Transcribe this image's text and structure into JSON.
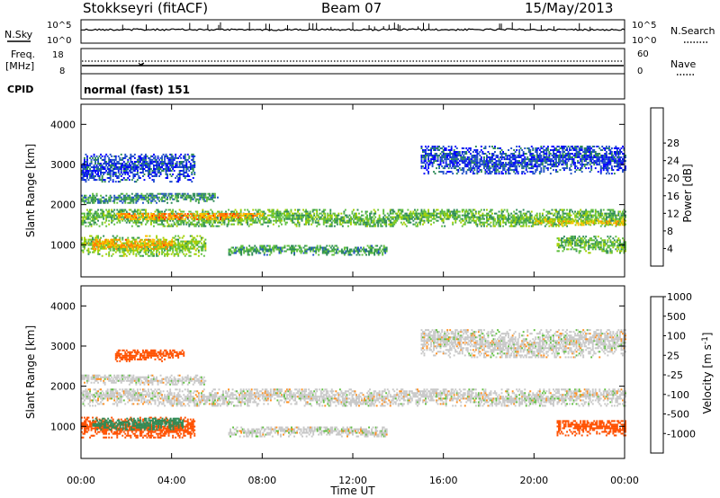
{
  "header": {
    "station": "Stokkseyri (fitACF)",
    "beam": "Beam 07",
    "date": "15/May/2013"
  },
  "strips": {
    "nsky_label": "N.Sky",
    "nsearch_label": "N.Search",
    "freq_label_1": "Freq.",
    "freq_label_2": "[MHz]",
    "nave_label": "Nave",
    "cpid_label": "CPID",
    "cpid_text": "normal (fast) 151",
    "noise_ticks_left": [
      "10^5",
      "10^0"
    ],
    "noise_ticks_right": [
      "10^5",
      "10^0"
    ],
    "freq_ticks_left": [
      "18",
      "8"
    ],
    "nave_ticks_right": [
      "60",
      "0"
    ]
  },
  "colors": {
    "power": [
      "#0000ff",
      "#2050c8",
      "#2e8b57",
      "#5fbf3f",
      "#a0d000",
      "#ffc000",
      "#ff8000",
      "#ff3000",
      "#ff0000"
    ],
    "velocity": [
      "#ff0000",
      "#ff5000",
      "#ff9020",
      "#c8c8c8",
      "#60c040",
      "#2e8b57",
      "#2050c8",
      "#0000ff"
    ]
  },
  "chart_data": [
    {
      "type": "heatmap",
      "panel": "power",
      "ylabel": "Slant Range [km]",
      "ylim": [
        200,
        4500
      ],
      "yticks": [
        1000,
        2000,
        3000,
        4000
      ],
      "colorbar_label": "Power [dB]",
      "colorbar_ticks": [
        "4",
        "8",
        "12",
        "16",
        "20",
        "24",
        "28"
      ],
      "colorbar_range": [
        0,
        32
      ],
      "bands": [
        {
          "t0": 0.0,
          "t1": 24.0,
          "r_center": 1650,
          "r_width": 420,
          "value": 12
        },
        {
          "t0": 1.5,
          "t1": 8.0,
          "r_center": 1700,
          "r_width": 180,
          "value": 22
        },
        {
          "t0": 0.0,
          "t1": 5.5,
          "r_center": 950,
          "r_width": 500,
          "value": 14
        },
        {
          "t0": 0.5,
          "t1": 4.0,
          "r_center": 1000,
          "r_width": 250,
          "value": 21
        },
        {
          "t0": 0.0,
          "t1": 6.0,
          "r_center": 2150,
          "r_width": 260,
          "value": 9
        },
        {
          "t0": 0.0,
          "t1": 5.0,
          "r_center": 2900,
          "r_width": 700,
          "value": 5
        },
        {
          "t0": 6.5,
          "t1": 13.5,
          "r_center": 850,
          "r_width": 250,
          "value": 10
        },
        {
          "t0": 15.0,
          "t1": 24.0,
          "r_center": 3100,
          "r_width": 700,
          "value": 5
        },
        {
          "t0": 21.0,
          "t1": 24.0,
          "r_center": 1000,
          "r_width": 450,
          "value": 12
        },
        {
          "t0": 20.0,
          "t1": 24.0,
          "r_center": 1550,
          "r_width": 160,
          "value": 18
        }
      ]
    },
    {
      "type": "heatmap",
      "panel": "velocity",
      "xlabel": "Time UT",
      "ylabel": "Slant Range [km]",
      "ylim": [
        200,
        4500
      ],
      "yticks": [
        1000,
        2000,
        3000,
        4000
      ],
      "xticks": [
        "00:00",
        "04:00",
        "08:00",
        "12:00",
        "16:00",
        "20:00",
        "00:00"
      ],
      "xlim": [
        0,
        24
      ],
      "colorbar_label": "Velocity [m s^-1]",
      "colorbar_ticks": [
        "-1000",
        "-500",
        "-100",
        "-25",
        "25",
        "100",
        "500",
        "1000"
      ],
      "bands": [
        {
          "t0": 0.0,
          "t1": 24.0,
          "r_center": 1700,
          "r_width": 420,
          "value": 0
        },
        {
          "t0": 0.0,
          "t1": 5.5,
          "r_center": 2150,
          "r_width": 260,
          "value": 0
        },
        {
          "t0": 0.0,
          "t1": 5.0,
          "r_center": 950,
          "r_width": 500,
          "value": -300
        },
        {
          "t0": 0.5,
          "t1": 4.5,
          "r_center": 1050,
          "r_width": 300,
          "value": 150
        },
        {
          "t0": 1.5,
          "t1": 4.5,
          "r_center": 2750,
          "r_width": 300,
          "value": -300
        },
        {
          "t0": 6.5,
          "t1": 13.5,
          "r_center": 850,
          "r_width": 250,
          "value": 0
        },
        {
          "t0": 15.0,
          "t1": 24.0,
          "r_center": 3050,
          "r_width": 700,
          "value": 0
        },
        {
          "t0": 21.0,
          "t1": 24.0,
          "r_center": 950,
          "r_width": 400,
          "value": -300
        }
      ]
    }
  ]
}
